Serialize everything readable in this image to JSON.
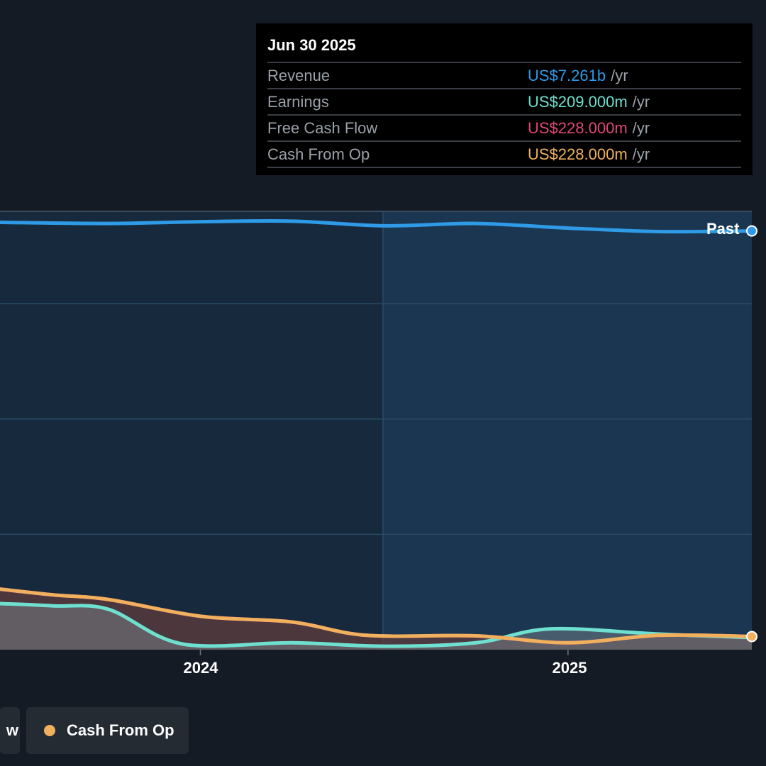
{
  "tooltip": {
    "date": "Jun 30 2025",
    "rows": [
      {
        "label": "Revenue",
        "value": "US$7.261b",
        "unit": "/yr",
        "color": "#2f9ae6"
      },
      {
        "label": "Earnings",
        "value": "US$209.000m",
        "unit": "/yr",
        "color": "#6fe0cf"
      },
      {
        "label": "Free Cash Flow",
        "value": "US$228.000m",
        "unit": "/yr",
        "color": "#e0457b"
      },
      {
        "label": "Cash From Op",
        "value": "US$228.000m",
        "unit": "/yr",
        "color": "#f0b05e"
      }
    ]
  },
  "past_label": "Past",
  "legend": [
    {
      "label": "Free Cash Flow",
      "visible_text": "w",
      "color": "#e0457b"
    },
    {
      "label": "Cash From Op",
      "color": "#f0b05e"
    }
  ],
  "chart_data": {
    "type": "line",
    "title": "",
    "x_ticks": [
      "2024",
      "2025"
    ],
    "x_tick_values": [
      2024.0,
      2025.0
    ],
    "xlim": [
      2023.455,
      2025.5
    ],
    "ylim": [
      0,
      7.6
    ],
    "y_unit": "US$ billions",
    "gridlines_y": [
      2,
      4,
      6
    ],
    "past_divider_x": 2024.5,
    "series": [
      {
        "name": "Revenue",
        "color": "#2f9ae6",
        "x": [
          2023.455,
          2023.75,
          2024.0,
          2024.25,
          2024.5,
          2024.75,
          2025.0,
          2025.25,
          2025.5
        ],
        "values": [
          7.41,
          7.39,
          7.42,
          7.43,
          7.35,
          7.39,
          7.31,
          7.25,
          7.261
        ]
      },
      {
        "name": "Earnings",
        "color": "#6fe0cf",
        "x": [
          2023.455,
          2023.6,
          2023.75,
          2023.95,
          2024.25,
          2024.5,
          2024.75,
          2024.95,
          2025.25,
          2025.5
        ],
        "values": [
          0.8,
          0.76,
          0.7,
          0.1,
          0.12,
          0.06,
          0.12,
          0.36,
          0.27,
          0.209
        ]
      },
      {
        "name": "Free Cash Flow",
        "color": "#e0457b",
        "x": [
          2023.455,
          2023.6,
          2023.75,
          2024.0,
          2024.25,
          2024.45,
          2024.75,
          2025.0,
          2025.25,
          2025.5
        ],
        "values": [
          1.05,
          0.95,
          0.87,
          0.58,
          0.48,
          0.25,
          0.24,
          0.12,
          0.25,
          0.228
        ]
      },
      {
        "name": "Cash From Op",
        "color": "#f0b05e",
        "x": [
          2023.455,
          2023.6,
          2023.75,
          2024.0,
          2024.25,
          2024.45,
          2024.75,
          2025.0,
          2025.25,
          2025.5
        ],
        "values": [
          1.05,
          0.95,
          0.87,
          0.58,
          0.48,
          0.25,
          0.24,
          0.12,
          0.25,
          0.228
        ]
      }
    ]
  }
}
